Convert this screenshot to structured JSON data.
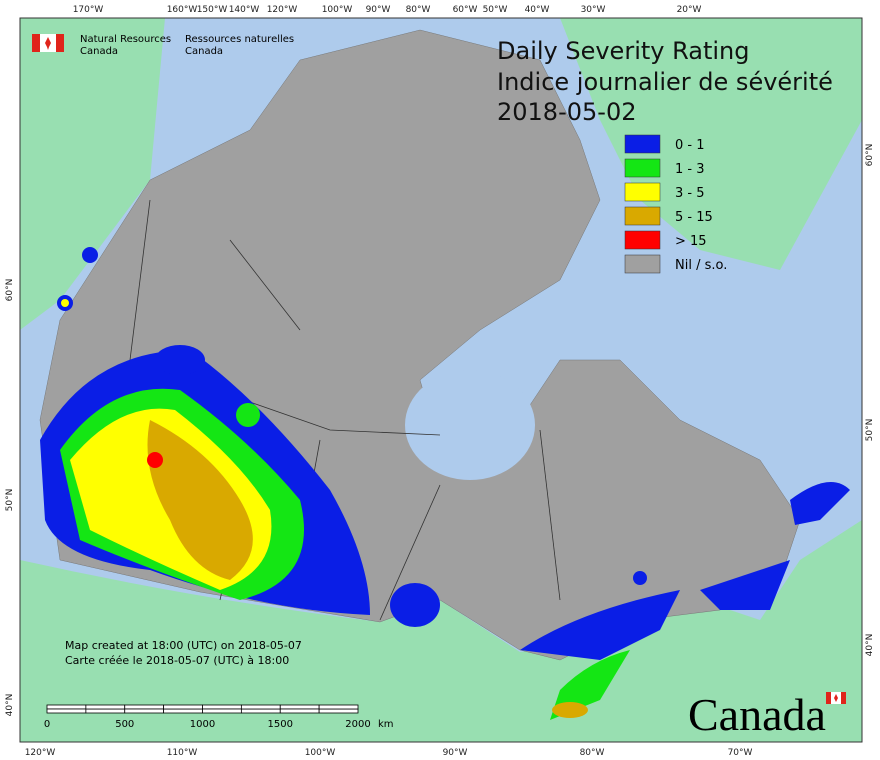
{
  "header": {
    "department_en": [
      "Natural Resources",
      "Canada"
    ],
    "department_fr": [
      "Ressources naturelles",
      "Canada"
    ]
  },
  "title": [
    "Daily Severity Rating",
    "Indice journalier de sévérité",
    "2018-05-02"
  ],
  "legend": [
    {
      "label": "0 - 1",
      "color": "#0a1ee6"
    },
    {
      "label": "1 - 3",
      "color": "#14e614"
    },
    {
      "label": "3 - 5",
      "color": "#ffff00"
    },
    {
      "label": "5 - 15",
      "color": "#d9a900"
    },
    {
      "label": "> 15",
      "color": "#ff0000"
    },
    {
      "label": "Nil / s.o.",
      "color": "#a0a0a0"
    }
  ],
  "graticule": {
    "top": [
      "170°W",
      "160°W",
      "150°W",
      "140°W",
      "120°W",
      "100°W",
      "90°W",
      "80°W",
      "60°W",
      "50°W",
      "40°W",
      "30°W",
      "20°W"
    ],
    "bottom": [
      "120°W",
      "110°W",
      "100°W",
      "90°W",
      "80°W",
      "70°W"
    ],
    "left": [
      "60°N",
      "50°N",
      "40°N"
    ],
    "right": [
      "60°N",
      "50°N",
      "40°N"
    ]
  },
  "footer": [
    "Map created at 18:00 (UTC) on 2018-05-07",
    "Carte créée le 2018-05-07 (UTC) à 18:00"
  ],
  "scale_bar": {
    "labels": [
      "0",
      "500",
      "1000",
      "1500",
      "2000"
    ],
    "unit": "km"
  },
  "wordmark": "Canada"
}
